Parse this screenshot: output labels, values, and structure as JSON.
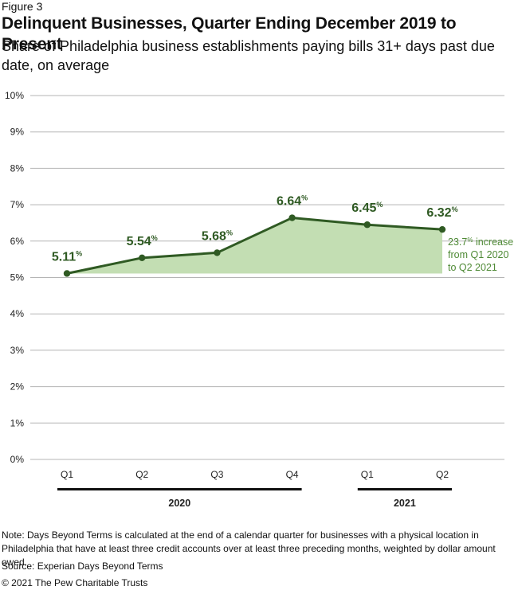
{
  "figure_label": "Figure 3",
  "title": "Delinquent Businesses, Quarter Ending December 2019 to Present",
  "subtitle": "Share of Philadelphia business establishments paying bills 31+ days past due date, on average",
  "chart_data": {
    "type": "area",
    "categories": [
      "Q1",
      "Q2",
      "Q3",
      "Q4",
      "Q1",
      "Q2"
    ],
    "values": [
      5.11,
      5.54,
      5.68,
      6.64,
      6.45,
      6.32
    ],
    "data_labels": [
      "5.11",
      "5.54",
      "5.68",
      "6.64",
      "6.45",
      "6.32"
    ],
    "label_suffix": "%",
    "ylim": [
      0,
      10
    ],
    "yticks": [
      "0%",
      "1%",
      "2%",
      "3%",
      "4%",
      "5%",
      "6%",
      "7%",
      "8%",
      "9%",
      "10%"
    ],
    "xlabel": "",
    "ylabel": "",
    "grid": true,
    "year_groups": [
      {
        "label": "2020",
        "from": 0,
        "to": 3
      },
      {
        "label": "2021",
        "from": 4,
        "to": 5
      }
    ],
    "annotation": {
      "value": "23.7",
      "suffix": "%",
      "rest": " increase",
      "line2": "from Q1 2020",
      "line3": "to Q2 2021"
    },
    "colors": {
      "line": "#2f5a23",
      "area": "#c3deb3",
      "label": "#2f5a23",
      "annotation": "#4f8a36",
      "grid": "#b5b5b5",
      "axis_text": "#222222",
      "group_bar": "#111111"
    }
  },
  "note": "Note: Days Beyond Terms is calculated at the end of a calendar quarter for businesses with a physical location in Philadelphia that have at least three credit accounts over at least three preceding months, weighted by dollar amount owed.",
  "source": "Source: Experian Days Beyond Terms",
  "copyright": "© 2021 The Pew Charitable Trusts"
}
